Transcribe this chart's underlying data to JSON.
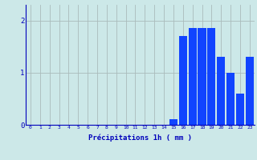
{
  "xlabel": "Précipitations 1h ( mm )",
  "ylabel": "",
  "values": [
    0,
    0,
    0,
    0,
    0,
    0,
    0,
    0,
    0,
    0,
    0,
    0,
    0,
    0,
    0,
    0.1,
    1.7,
    1.85,
    1.85,
    1.85,
    1.3,
    1.0,
    0.6,
    1.3
  ],
  "bar_color": "#1144ff",
  "background_color": "#cce8e8",
  "grid_color": "#aabbbb",
  "text_color": "#0000bb",
  "ylim": [
    0,
    2.3
  ],
  "yticks": [
    0,
    1,
    2
  ],
  "xlim": [
    -0.5,
    23.5
  ],
  "bar_width": 0.85,
  "figsize": [
    3.2,
    2.0
  ],
  "dpi": 100
}
